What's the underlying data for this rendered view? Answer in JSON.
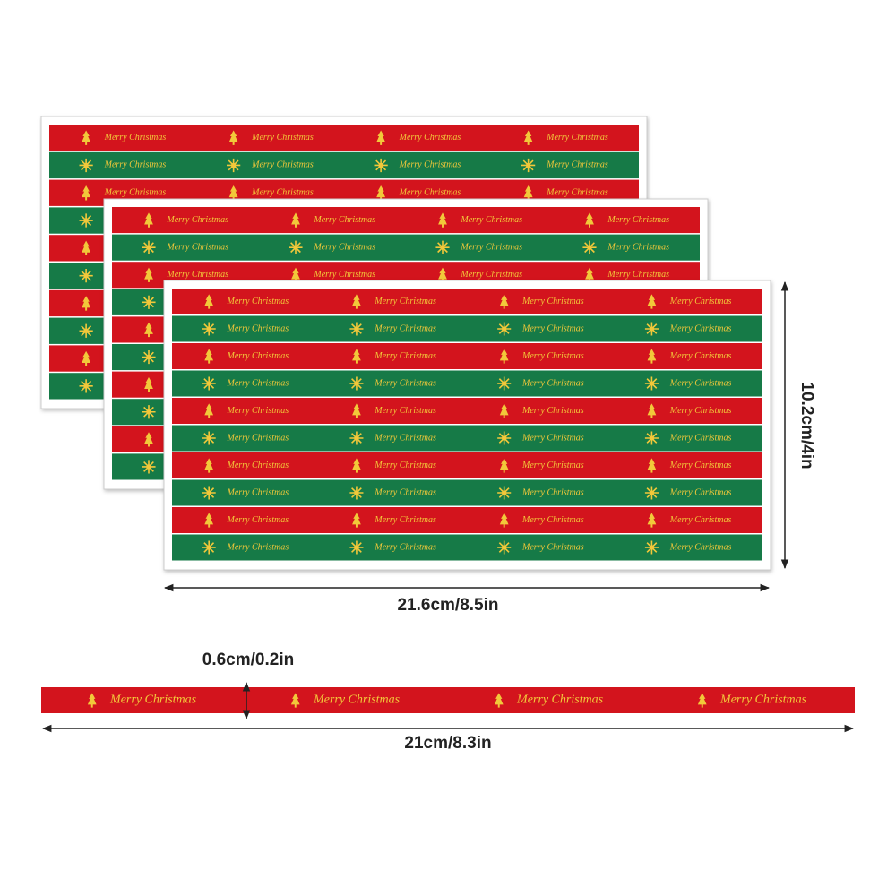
{
  "strip_text": "Merry Christmas",
  "dimensions": {
    "sheet_width": "21.6cm/8.5in",
    "sheet_height": "10.2cm/4in",
    "strip_height": "0.6cm/0.2in",
    "strip_width": "21cm/8.3in"
  }
}
